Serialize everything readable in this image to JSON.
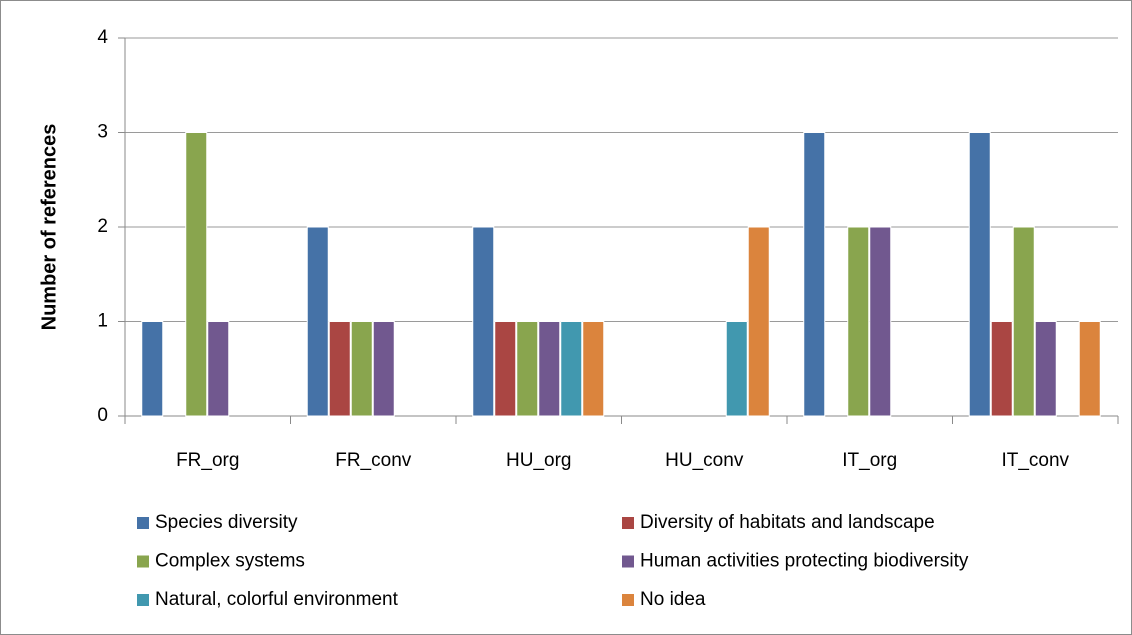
{
  "chart_data": {
    "type": "bar",
    "ylabel": "Number of references",
    "categories": [
      "FR_org",
      "FR_conv",
      "HU_org",
      "HU_conv",
      "IT_org",
      "IT_conv"
    ],
    "series": [
      {
        "name": "Species diversity",
        "color": "#4572a7",
        "values": [
          1,
          2,
          2,
          0,
          3,
          3
        ]
      },
      {
        "name": "Diversity of habitats and landscape",
        "color": "#aa4643",
        "values": [
          0,
          1,
          1,
          0,
          0,
          1
        ]
      },
      {
        "name": "Complex systems",
        "color": "#89a54e",
        "values": [
          3,
          1,
          1,
          0,
          2,
          2
        ]
      },
      {
        "name": "Human activities protecting biodiversity",
        "color": "#71588f",
        "values": [
          1,
          1,
          1,
          0,
          2,
          1
        ]
      },
      {
        "name": "Natural, colorful environment",
        "color": "#4198af",
        "values": [
          0,
          0,
          1,
          1,
          0,
          0
        ]
      },
      {
        "name": "No idea",
        "color": "#db843d",
        "values": [
          0,
          0,
          1,
          2,
          0,
          1
        ]
      }
    ],
    "ylim": [
      0,
      4
    ],
    "yticks": [
      0,
      1,
      2,
      3,
      4
    ],
    "grid": true
  }
}
